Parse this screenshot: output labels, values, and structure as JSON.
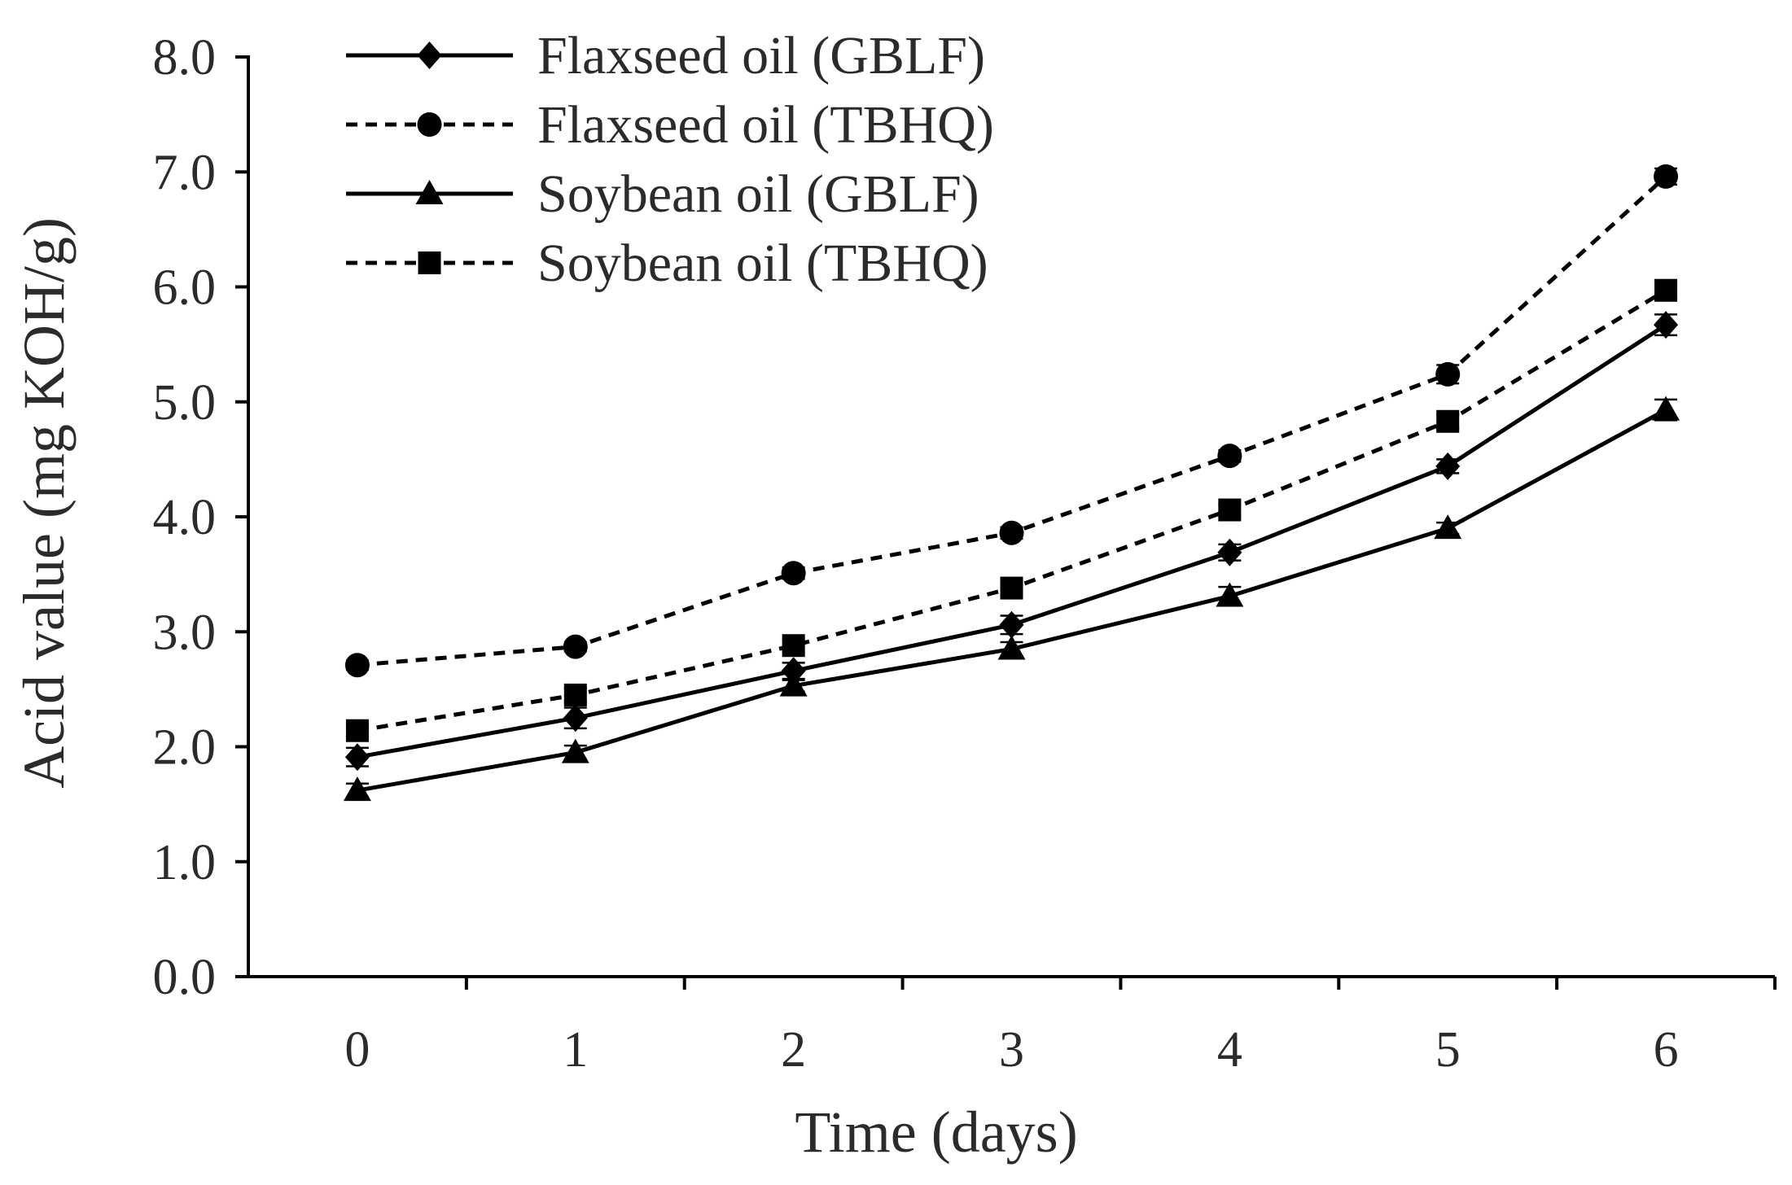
{
  "chart_data": {
    "type": "line",
    "title": "",
    "xlabel": "Time (days)",
    "ylabel": "Acid value (mg KOH/g)",
    "ylim": [
      0,
      8
    ],
    "y_ticks": [
      "0.0",
      "1.0",
      "2.0",
      "3.0",
      "4.0",
      "5.0",
      "6.0",
      "7.0",
      "8.0"
    ],
    "categories": [
      "0",
      "1",
      "2",
      "3",
      "4",
      "5",
      "6"
    ],
    "grid": false,
    "legend_position": "top-left",
    "series": [
      {
        "name": "Flaxseed oil (GBLF)",
        "style": "solid",
        "marker": "diamond",
        "values": [
          1.91,
          2.25,
          2.66,
          3.06,
          3.69,
          4.44,
          5.67
        ],
        "errors": [
          0.08,
          0.09,
          0.07,
          0.08,
          0.07,
          0.06,
          0.09
        ]
      },
      {
        "name": "Flaxseed oil (TBHQ)",
        "style": "dashed",
        "marker": "circle",
        "values": [
          2.71,
          2.87,
          3.51,
          3.86,
          4.53,
          5.24,
          6.96
        ],
        "errors": [
          0.04,
          0.04,
          0.05,
          0.05,
          0.05,
          0.08,
          0.07
        ]
      },
      {
        "name": "Soybean oil (GBLF)",
        "style": "solid",
        "marker": "triangle",
        "values": [
          1.62,
          1.95,
          2.53,
          2.85,
          3.31,
          3.9,
          4.93
        ],
        "errors": [
          0.06,
          0.06,
          0.05,
          0.06,
          0.08,
          0.05,
          0.09
        ]
      },
      {
        "name": "Soybean oil (TBHQ)",
        "style": "dashed",
        "marker": "square",
        "values": [
          2.14,
          2.45,
          2.88,
          3.38,
          4.06,
          4.83,
          5.97
        ],
        "errors": [
          0.05,
          0.06,
          0.05,
          0.05,
          0.05,
          0.06,
          0.07
        ]
      }
    ]
  }
}
